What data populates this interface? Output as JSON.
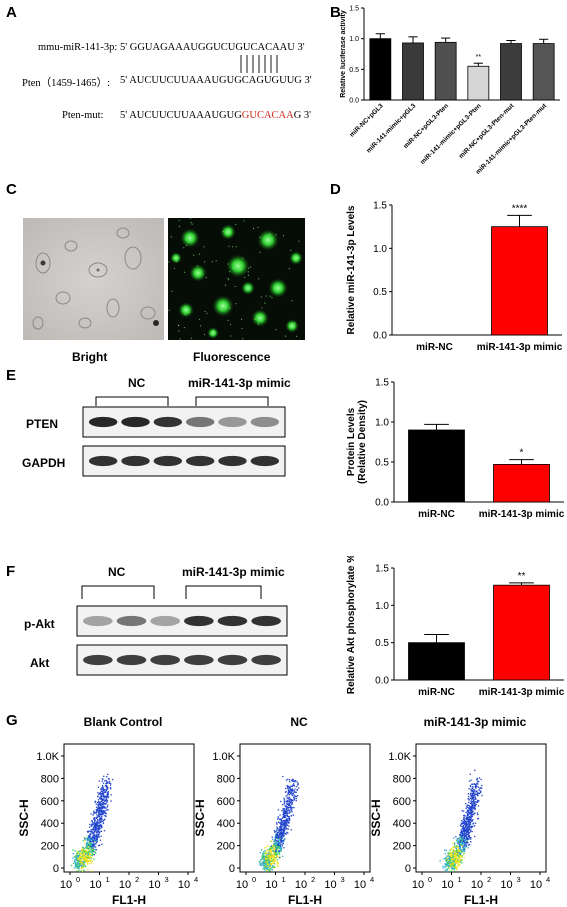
{
  "panel_labels": {
    "a": "A",
    "b": "B",
    "c": "C",
    "d": "D",
    "e": "E",
    "f": "F",
    "g": "G"
  },
  "panel_a": {
    "row1_name": "mmu-miR-141-3p:",
    "row1_seq": "5' GGUAGAAAUGGUCUGUCACAAU 3'",
    "row2_name": "Pten（1459-1465）:",
    "row2_seq": "5' AUCUUCUUAAAUGUGCAGUGUUG 3'",
    "row3_name": "Pten-mut:",
    "row3_seq_plain": "5' AUCUUCUUAAAUGUG",
    "row3_seq_red": "GUCACAA",
    "row3_seq_end": "G 3'"
  },
  "panel_c": {
    "bright_label": "Bright",
    "fluor_label": "Fluorescence"
  },
  "panel_e": {
    "group1": "NC",
    "group2": "miR-141-3p mimic",
    "row1": "PTEN",
    "row2": "GAPDH",
    "band_intensity": {
      "PTEN": [
        0.9,
        0.9,
        0.85,
        0.55,
        0.4,
        0.45
      ],
      "GAPDH": [
        0.85,
        0.85,
        0.85,
        0.85,
        0.85,
        0.85
      ]
    }
  },
  "panel_f": {
    "group1": "NC",
    "group2": "miR-141-3p mimic",
    "row1": "p-Akt",
    "row2": "Akt",
    "band_intensity": {
      "p-Akt": [
        0.35,
        0.55,
        0.35,
        0.85,
        0.85,
        0.85
      ],
      "Akt": [
        0.8,
        0.8,
        0.8,
        0.8,
        0.8,
        0.8
      ]
    }
  },
  "panel_g": {
    "plots": [
      {
        "title": "Blank Control",
        "xlabel": "FL1-H",
        "ylabel": "SSC-H"
      },
      {
        "title": "NC",
        "xlabel": "FL1-H",
        "ylabel": "SSC-H"
      },
      {
        "title": "miR-141-3p mimic",
        "xlabel": "FL1-H",
        "ylabel": "SSC-H"
      }
    ],
    "yticks": [
      "0",
      "200",
      "400",
      "600",
      "800",
      "1.0K"
    ],
    "xticks": [
      "10",
      "10",
      "10",
      "10",
      "10"
    ],
    "xtick_exps": [
      "0",
      "1",
      "2",
      "3",
      "4"
    ]
  },
  "colors": {
    "gray_bar": "#000000",
    "black_bar": "#000000",
    "red_bar": "#ff0000",
    "red_text": "#d0281e"
  },
  "chart_data": [
    {
      "id": "B",
      "type": "bar",
      "categories": [
        "miR-NC+pGL3",
        "miR-141-mimic+pGL3",
        "miR-NC+pGL3-Pten",
        "miR-141-mimic+pGL3-Pten",
        "miR-NC+pGL3-Pten-mut",
        "miR-141-mimic+pGL3-Pten-mut"
      ],
      "values": [
        1.0,
        0.93,
        0.94,
        0.55,
        0.92,
        0.92
      ],
      "errors": [
        0.08,
        0.1,
        0.07,
        0.05,
        0.05,
        0.07
      ],
      "colors": [
        "#000000",
        "#3a3a3a",
        "#505050",
        "#d6d6d6",
        "#3c3c3c",
        "#555555"
      ],
      "annotations": [
        "",
        "",
        "",
        "**",
        "",
        ""
      ],
      "ylabel": "Relative luciferase activity",
      "ylim": [
        0,
        1.5
      ],
      "yticks": [
        "0.0",
        "0.5",
        "1.0",
        "1.5"
      ]
    },
    {
      "id": "D",
      "type": "bar",
      "categories": [
        "miR-NC",
        "miR-141-3p mimic"
      ],
      "values": [
        0.0,
        1.25
      ],
      "errors": [
        0.0,
        0.13
      ],
      "colors": [
        "#000000",
        "#ff0000"
      ],
      "annotations": [
        "",
        "****"
      ],
      "ylabel": "Relative miR-141-3p Levels",
      "ylim": [
        0,
        1.5
      ],
      "yticks": [
        "0.0",
        "0.5",
        "1.0",
        "1.5"
      ]
    },
    {
      "id": "E",
      "type": "bar",
      "categories": [
        "miR-NC",
        "miR-141-3p mimic"
      ],
      "values": [
        0.9,
        0.47
      ],
      "errors": [
        0.07,
        0.06
      ],
      "colors": [
        "#000000",
        "#ff0000"
      ],
      "annotations": [
        "",
        "*"
      ],
      "ylabel": "Protein Levels\n(Relative Density)",
      "ylim": [
        0,
        1.5
      ],
      "yticks": [
        "0.0",
        "0.5",
        "1.0",
        "1.5"
      ]
    },
    {
      "id": "F",
      "type": "bar",
      "categories": [
        "miR-NC",
        "miR-141-3p mimic"
      ],
      "values": [
        0.5,
        1.27
      ],
      "errors": [
        0.11,
        0.03
      ],
      "colors": [
        "#000000",
        "#ff0000"
      ],
      "annotations": [
        "",
        "**"
      ],
      "ylabel": "Relative Akt phosphorylate %",
      "ylim": [
        0,
        1.5
      ],
      "yticks": [
        "0.0",
        "0.5",
        "1.0",
        "1.5"
      ]
    }
  ]
}
